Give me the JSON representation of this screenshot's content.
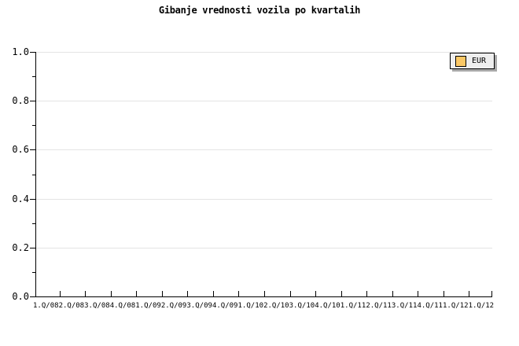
{
  "title": "Gibanje vrednosti vozila po kvartalih",
  "legend": {
    "label": "EUR",
    "swatch_color": "#fbc866",
    "background": "#eeeeee",
    "shadow_color": "#a8a8a8",
    "border_color": "#000000"
  },
  "colors": {
    "background": "#ffffff",
    "axis": "#000000",
    "grid": "#e4e4e4",
    "text": "#000000"
  },
  "chart_data": {
    "type": "line",
    "title": "Gibanje vrednosti vozila po kvartalih",
    "categories": [
      "1.Q/08",
      "2.Q/08",
      "3.Q/08",
      "4.Q/08",
      "1.Q/09",
      "2.Q/09",
      "3.Q/09",
      "4.Q/09",
      "1.Q/10",
      "2.Q/10",
      "3.Q/10",
      "4.Q/10",
      "1.Q/11",
      "2.Q/11",
      "3.Q/11",
      "4.Q/11",
      "1.Q/12",
      "1.Q/12"
    ],
    "series": [
      {
        "name": "EUR",
        "color": "#fbc866",
        "values": []
      }
    ],
    "plot_empty": true,
    "xlabel": "",
    "ylabel": "",
    "ylim": [
      0.0,
      1.0
    ],
    "yticks": [
      0.0,
      0.2,
      0.4,
      0.6,
      0.8,
      1.0
    ],
    "ytick_labels": [
      "0.0",
      "0.2",
      "0.4",
      "0.6",
      "0.8",
      "1.0"
    ],
    "yticks_minor": [
      0.1,
      0.3,
      0.5,
      0.7,
      0.9
    ],
    "grid": "horizontal-major",
    "legend_position": "top-right"
  }
}
